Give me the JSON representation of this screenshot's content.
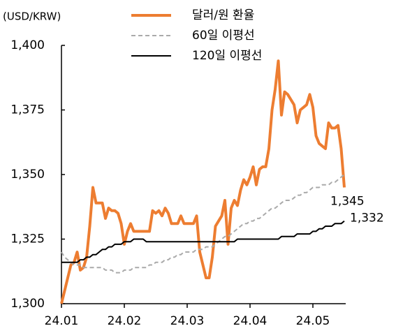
{
  "chart_data": {
    "type": "line",
    "ylabel": "(USD/KRW)",
    "categories": [
      "24.01",
      null,
      null,
      null,
      null,
      null,
      null,
      null,
      null,
      null,
      null,
      null,
      null,
      null,
      null,
      null,
      null,
      null,
      null,
      null,
      "24.02",
      null,
      null,
      null,
      null,
      null,
      null,
      null,
      null,
      null,
      null,
      null,
      null,
      null,
      null,
      null,
      null,
      null,
      null,
      null,
      "24.03",
      null,
      null,
      null,
      null,
      null,
      null,
      null,
      null,
      null,
      null,
      null,
      null,
      null,
      null,
      null,
      null,
      null,
      null,
      null,
      "24.04",
      null,
      null,
      null,
      null,
      null,
      null,
      null,
      null,
      null,
      null,
      null,
      null,
      null,
      null,
      null,
      null,
      null,
      null,
      null,
      "24.05",
      null,
      null,
      null,
      null,
      null,
      null,
      null,
      null,
      null,
      null
    ],
    "ylim": [
      1300,
      1400
    ],
    "yticks": [
      {
        "value": 1300,
        "label": "1,300"
      },
      {
        "value": 1325,
        "label": "1,325"
      },
      {
        "value": 1350,
        "label": "1,350"
      },
      {
        "value": 1375,
        "label": "1,375"
      },
      {
        "value": 1400,
        "label": "1,400"
      }
    ],
    "series": [
      {
        "name": "달러/원 환율",
        "color": "#ed7d31",
        "width": 4,
        "dashed": false,
        "values": [
          1300,
          1305,
          1310,
          1315,
          1316,
          1320,
          1313,
          1314,
          1318,
          1330,
          1345,
          1339,
          1339,
          1339,
          1333,
          1337,
          1336,
          1336,
          1335,
          1331,
          1323,
          1328,
          1331,
          1328,
          1328,
          1328,
          1328,
          1328,
          1328,
          1336,
          1335,
          1336,
          1334,
          1337,
          1335,
          1331,
          1331,
          1331,
          1334,
          1331,
          1331,
          1331,
          1331,
          1334,
          1320,
          1315,
          1310,
          1310,
          1318,
          1330,
          1332,
          1334,
          1340,
          1323,
          1337,
          1340,
          1338,
          1344,
          1348,
          1346,
          1349,
          1353,
          1346,
          1352,
          1353,
          1353,
          1360,
          1375,
          1383,
          1394,
          1373,
          1382,
          1381,
          1379,
          1377,
          1370,
          1375,
          1376,
          1377,
          1381,
          1376,
          1365,
          1362,
          1361,
          1360,
          1370,
          1368,
          1368,
          1369,
          1360,
          1345
        ],
        "value_labels": [
          null,
          null,
          null,
          null,
          null,
          null,
          null,
          null,
          null,
          null,
          null,
          null,
          null,
          null,
          null,
          null,
          null,
          null,
          null,
          null,
          null,
          null,
          null,
          null,
          null,
          null,
          null,
          null,
          null,
          null,
          null,
          null,
          null,
          null,
          null,
          null,
          null,
          null,
          null,
          null,
          null,
          null,
          null,
          null,
          null,
          null,
          null,
          null,
          null,
          null,
          null,
          null,
          null,
          null,
          null,
          null,
          null,
          null,
          null,
          null,
          null,
          null,
          null,
          null,
          null,
          null,
          null,
          null,
          null,
          null,
          null,
          null,
          null,
          null,
          null,
          null,
          null,
          null,
          null,
          null,
          null,
          null,
          null,
          null,
          null,
          null,
          null,
          null,
          null,
          null,
          "1,345"
        ]
      },
      {
        "name": "60일 이평선",
        "color": "#aaaaaa",
        "width": 2,
        "dashed": true,
        "values": [
          1320,
          1318,
          1317,
          1316,
          1315,
          1315,
          1315,
          1314,
          1314,
          1314,
          1314,
          1314,
          1314,
          1314,
          1313,
          1313,
          1313,
          1312,
          1312,
          1312,
          1313,
          1313,
          1313,
          1314,
          1314,
          1314,
          1314,
          1314,
          1315,
          1315,
          1316,
          1316,
          1316,
          1317,
          1317,
          1318,
          1318,
          1319,
          1319,
          1320,
          1320,
          1320,
          1320,
          1321,
          1321,
          1321,
          1322,
          1322,
          1322,
          1323,
          1324,
          1325,
          1326,
          1326,
          1327,
          1328,
          1329,
          1330,
          1331,
          1331,
          1332,
          1332,
          1333,
          1333,
          1334,
          1335,
          1336,
          1337,
          1337,
          1338,
          1339,
          1340,
          1340,
          1340,
          1341,
          1342,
          1342,
          1343,
          1343,
          1344,
          1345,
          1345,
          1345,
          1346,
          1346,
          1346,
          1347,
          1347,
          1348,
          1349,
          1350
        ]
      },
      {
        "name": "120일 이평선",
        "color": "#000000",
        "width": 2,
        "dashed": false,
        "values": [
          1316,
          1316,
          1316,
          1316,
          1316,
          1316,
          1317,
          1317,
          1318,
          1318,
          1319,
          1319,
          1320,
          1321,
          1321,
          1322,
          1322,
          1323,
          1323,
          1323,
          1324,
          1324,
          1324,
          1325,
          1325,
          1325,
          1325,
          1324,
          1324,
          1324,
          1324,
          1324,
          1324,
          1324,
          1324,
          1324,
          1324,
          1324,
          1324,
          1324,
          1324,
          1324,
          1324,
          1324,
          1324,
          1324,
          1324,
          1324,
          1324,
          1324,
          1324,
          1324,
          1324,
          1324,
          1324,
          1324,
          1325,
          1325,
          1325,
          1325,
          1325,
          1325,
          1325,
          1325,
          1325,
          1325,
          1325,
          1325,
          1325,
          1325,
          1326,
          1326,
          1326,
          1326,
          1326,
          1327,
          1327,
          1327,
          1327,
          1327,
          1328,
          1328,
          1329,
          1329,
          1330,
          1330,
          1330,
          1331,
          1331,
          1331,
          1332
        ],
        "value_labels": [
          null,
          null,
          null,
          null,
          null,
          null,
          null,
          null,
          null,
          null,
          null,
          null,
          null,
          null,
          null,
          null,
          null,
          null,
          null,
          null,
          null,
          null,
          null,
          null,
          null,
          null,
          null,
          null,
          null,
          null,
          null,
          null,
          null,
          null,
          null,
          null,
          null,
          null,
          null,
          null,
          null,
          null,
          null,
          null,
          null,
          null,
          null,
          null,
          null,
          null,
          null,
          null,
          null,
          null,
          null,
          null,
          null,
          null,
          null,
          null,
          null,
          null,
          null,
          null,
          null,
          null,
          null,
          null,
          null,
          null,
          null,
          null,
          null,
          null,
          null,
          null,
          null,
          null,
          null,
          null,
          null,
          null,
          null,
          null,
          null,
          null,
          null,
          null,
          null,
          null,
          "1,332"
        ]
      }
    ]
  }
}
